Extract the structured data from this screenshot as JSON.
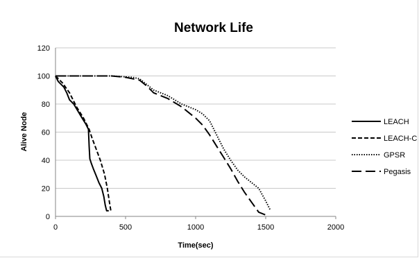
{
  "chart_data": {
    "type": "line",
    "title": "Network Life",
    "xlabel": "Time(sec)",
    "ylabel": "Alive Node",
    "xlim": [
      0,
      2000
    ],
    "ylim": [
      0,
      120
    ],
    "x_ticks": [
      0,
      500,
      1000,
      1500,
      2000
    ],
    "y_ticks": [
      0,
      20,
      40,
      60,
      80,
      100,
      120
    ],
    "grid": "horizontal",
    "legend_position": "right",
    "series": [
      {
        "name": "LEACH",
        "style": "solid",
        "x": [
          0,
          20,
          40,
          60,
          80,
          100,
          130,
          160,
          190,
          215,
          235,
          240,
          245,
          255,
          270,
          290,
          310,
          330,
          345,
          355,
          365,
          380
        ],
        "y": [
          100,
          96,
          94,
          92,
          88,
          83,
          80,
          75,
          70,
          66,
          62,
          50,
          41,
          38,
          34,
          29,
          24,
          20,
          14,
          8,
          4,
          4
        ]
      },
      {
        "name": "LEACH-C",
        "style": "dashed",
        "x": [
          0,
          50,
          100,
          150,
          200,
          240,
          260,
          290,
          320,
          350,
          370,
          385,
          395
        ],
        "y": [
          100,
          95,
          88,
          78,
          70,
          62,
          56,
          48,
          40,
          30,
          20,
          10,
          4
        ]
      },
      {
        "name": "GPSR",
        "style": "dotted",
        "x": [
          0,
          400,
          550,
          600,
          650,
          700,
          800,
          900,
          1000,
          1050,
          1100,
          1150,
          1200,
          1250,
          1300,
          1350,
          1400,
          1450,
          1500,
          1530
        ],
        "y": [
          100,
          100,
          99,
          98,
          94,
          90,
          86,
          80,
          76,
          73,
          68,
          58,
          48,
          40,
          33,
          28,
          24,
          20,
          11,
          5
        ]
      },
      {
        "name": "Pegasis",
        "style": "longdash",
        "x": [
          0,
          400,
          500,
          600,
          650,
          700,
          800,
          900,
          950,
          1000,
          1050,
          1100,
          1150,
          1200,
          1250,
          1300,
          1350,
          1400,
          1450,
          1500,
          1510
        ],
        "y": [
          100,
          100,
          99,
          97,
          93,
          88,
          84,
          78,
          74,
          70,
          65,
          58,
          50,
          42,
          34,
          25,
          17,
          10,
          3,
          1,
          1
        ]
      }
    ]
  }
}
